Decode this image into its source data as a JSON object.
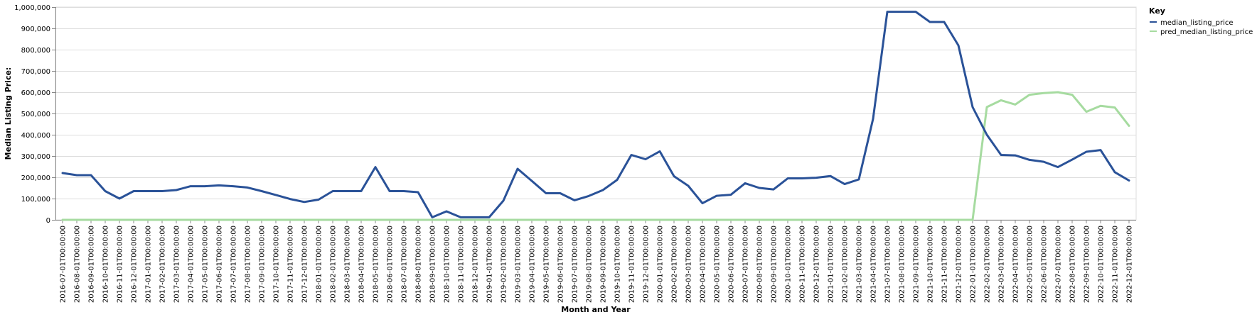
{
  "chart_data": {
    "type": "line",
    "xlabel": "Month and Year",
    "ylabel": "Median Listing Price:",
    "ylim": [
      0,
      1000000
    ],
    "yticks": [
      "0",
      "100,000",
      "200,000",
      "300,000",
      "400,000",
      "500,000",
      "600,000",
      "700,000",
      "800,000",
      "900,000",
      "1,000,000"
    ],
    "grid": true,
    "legend": {
      "title": "Key",
      "placement": "right"
    },
    "x": [
      "2016-07-01T00:00:00",
      "2016-08-01T00:00:00",
      "2016-09-01T00:00:00",
      "2016-10-01T00:00:00",
      "2016-11-01T00:00:00",
      "2016-12-01T00:00:00",
      "2017-01-01T00:00:00",
      "2017-02-01T00:00:00",
      "2017-03-01T00:00:00",
      "2017-04-01T00:00:00",
      "2017-05-01T00:00:00",
      "2017-06-01T00:00:00",
      "2017-07-01T00:00:00",
      "2017-08-01T00:00:00",
      "2017-09-01T00:00:00",
      "2017-10-01T00:00:00",
      "2017-11-01T00:00:00",
      "2017-12-01T00:00:00",
      "2018-01-01T00:00:00",
      "2018-02-01T00:00:00",
      "2018-03-01T00:00:00",
      "2018-04-01T00:00:00",
      "2018-05-01T00:00:00",
      "2018-06-01T00:00:00",
      "2018-07-01T00:00:00",
      "2018-08-01T00:00:00",
      "2018-09-01T00:00:00",
      "2018-10-01T00:00:00",
      "2018-11-01T00:00:00",
      "2018-12-01T00:00:00",
      "2019-01-01T00:00:00",
      "2019-02-01T00:00:00",
      "2019-03-01T00:00:00",
      "2019-04-01T00:00:00",
      "2019-05-01T00:00:00",
      "2019-06-01T00:00:00",
      "2019-07-01T00:00:00",
      "2019-08-01T00:00:00",
      "2019-09-01T00:00:00",
      "2019-10-01T00:00:00",
      "2019-11-01T00:00:00",
      "2019-12-01T00:00:00",
      "2020-01-01T00:00:00",
      "2020-02-01T00:00:00",
      "2020-03-01T00:00:00",
      "2020-04-01T00:00:00",
      "2020-05-01T00:00:00",
      "2020-06-01T00:00:00",
      "2020-07-01T00:00:00",
      "2020-08-01T00:00:00",
      "2020-09-01T00:00:00",
      "2020-10-01T00:00:00",
      "2020-11-01T00:00:00",
      "2020-12-01T00:00:00",
      "2021-01-01T00:00:00",
      "2021-02-01T00:00:00",
      "2021-03-01T00:00:00",
      "2021-04-01T00:00:00",
      "2021-07-01T00:00:00",
      "2021-08-01T00:00:00",
      "2021-09-01T00:00:00",
      "2021-10-01T00:00:00",
      "2021-11-01T00:00:00",
      "2021-12-01T00:00:00",
      "2022-01-01T00:00:00",
      "2022-02-01T00:00:00",
      "2022-03-01T00:00:00",
      "2022-04-01T00:00:00",
      "2022-05-01T00:00:00",
      "2022-06-01T00:00:00",
      "2022-07-01T00:00:00",
      "2022-08-01T00:00:00",
      "2022-09-01T00:00:00",
      "2022-10-01T00:00:00",
      "2022-11-01T00:00:00",
      "2022-12-01T00:00:00"
    ],
    "series": [
      {
        "name": "median_listing_price",
        "color": "#2a5298",
        "values": [
          220000,
          210000,
          210000,
          135000,
          100000,
          135000,
          135000,
          135000,
          140000,
          158000,
          158000,
          162000,
          158000,
          152000,
          135000,
          117000,
          98000,
          84000,
          95000,
          135000,
          135000,
          135000,
          248000,
          135000,
          135000,
          130000,
          12000,
          40000,
          12000,
          12000,
          12000,
          90000,
          240000,
          183000,
          125000,
          125000,
          92000,
          112000,
          140000,
          188000,
          305000,
          285000,
          322000,
          205000,
          160000,
          78000,
          113000,
          118000,
          172000,
          150000,
          143000,
          195000,
          195000,
          198000,
          206000,
          168000,
          190000,
          475000,
          978000,
          978000,
          978000,
          930000,
          930000,
          820000,
          530000,
          400000,
          305000,
          303000,
          282000,
          273000,
          248000,
          283000,
          320000,
          328000,
          224000,
          185000
        ]
      },
      {
        "name": "pred_median_listing_price",
        "color": "#a6dba0",
        "values": [
          0,
          0,
          0,
          0,
          0,
          0,
          0,
          0,
          0,
          0,
          0,
          0,
          0,
          0,
          0,
          0,
          0,
          0,
          0,
          0,
          0,
          0,
          0,
          0,
          0,
          0,
          0,
          0,
          0,
          0,
          0,
          0,
          0,
          0,
          0,
          0,
          0,
          0,
          0,
          0,
          0,
          0,
          0,
          0,
          0,
          0,
          0,
          0,
          0,
          0,
          0,
          0,
          0,
          0,
          0,
          0,
          0,
          0,
          0,
          0,
          0,
          0,
          0,
          0,
          0,
          530000,
          562000,
          542000,
          588000,
          596000,
          600000,
          588000,
          508000,
          536000,
          528000,
          442000
        ]
      }
    ]
  }
}
